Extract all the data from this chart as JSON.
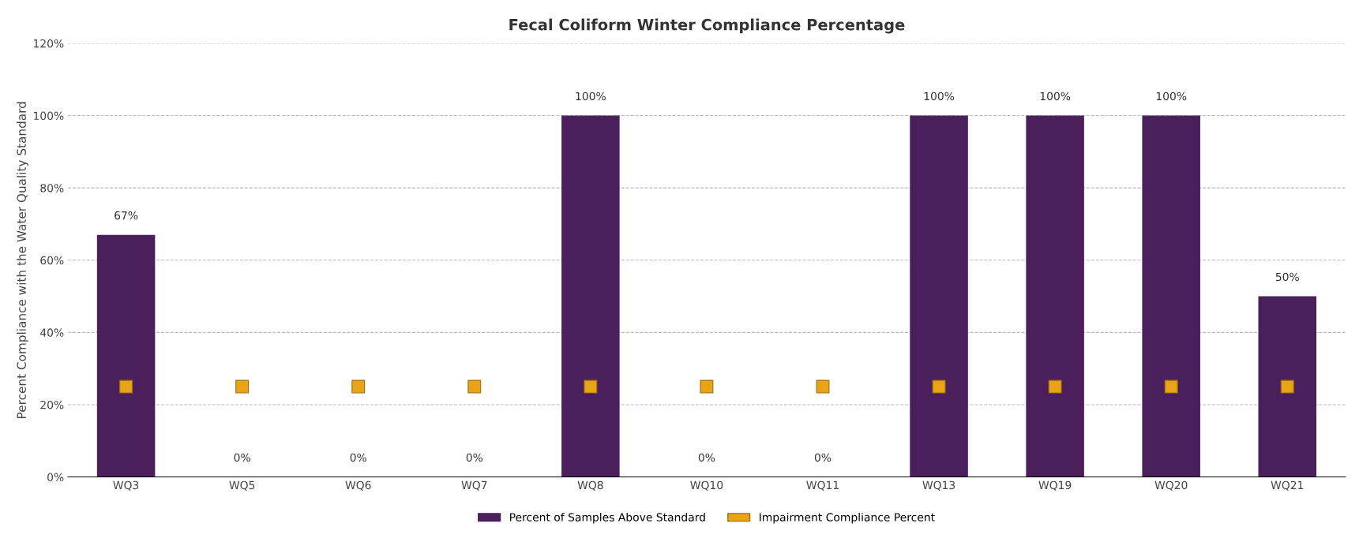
{
  "chart_data": {
    "type": "bar",
    "title": "Fecal Coliform Winter Compliance Percentage",
    "ylabel": "Percent Compliance with the Water Quality Standard",
    "categories": [
      "WQ3",
      "WQ5",
      "WQ6",
      "WQ7",
      "WQ8",
      "WQ10",
      "WQ11",
      "WQ13",
      "WQ19",
      "WQ20",
      "WQ21"
    ],
    "series": [
      {
        "name": "Percent of Samples Above Standard",
        "color": "#4a1f5c",
        "values": [
          67,
          0,
          0,
          0,
          100,
          0,
          0,
          100,
          100,
          100,
          50
        ],
        "value_labels": [
          "67%",
          "0%",
          "0%",
          "0%",
          "100%",
          "0%",
          "0%",
          "100%",
          "100%",
          "100%",
          "50%"
        ]
      },
      {
        "name": "Impairment Compliance Percent",
        "type": "scatter",
        "color": "#e8a317",
        "values": [
          25,
          25,
          25,
          25,
          25,
          25,
          25,
          25,
          25,
          25,
          25
        ]
      }
    ],
    "ylim": [
      0,
      120
    ],
    "yticks": [
      {
        "value": 0,
        "label": "0%"
      },
      {
        "value": 20,
        "label": "20%"
      },
      {
        "value": 40,
        "label": "40%"
      },
      {
        "value": 60,
        "label": "60%"
      },
      {
        "value": 80,
        "label": "80%"
      },
      {
        "value": 100,
        "label": "100%"
      },
      {
        "value": 120,
        "label": "120%"
      }
    ],
    "grid": "y",
    "legend": "bottom"
  }
}
